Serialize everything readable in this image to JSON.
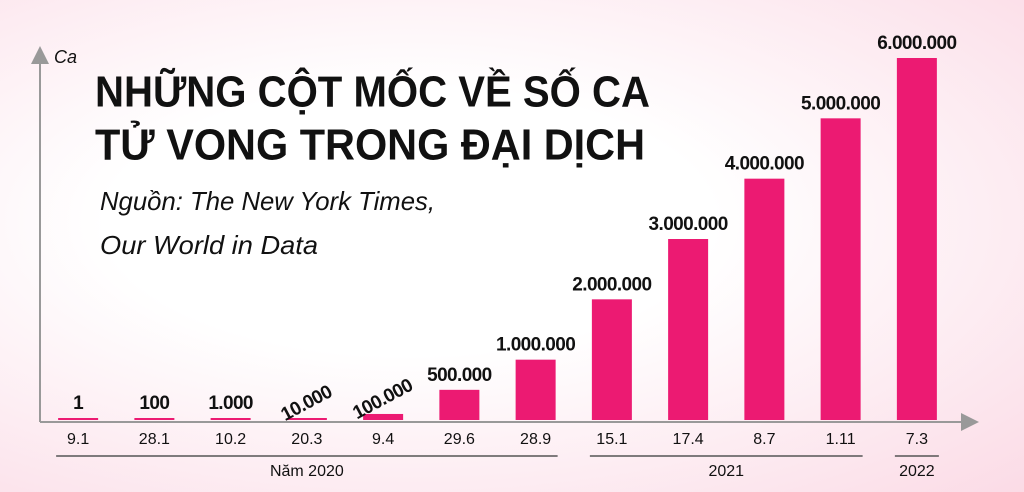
{
  "chart_data": {
    "type": "bar",
    "title": [
      "NHỮNG CỘT MỐC VỀ SỐ CA",
      "TỬ VONG TRONG ĐẠI DỊCH"
    ],
    "subtitle": [
      "Nguồn: The New York Times,",
      "Our World in Data"
    ],
    "y_label": "Ca",
    "categories": [
      "9.1",
      "28.1",
      "10.2",
      "20.3",
      "9.4",
      "29.6",
      "28.9",
      "15.1",
      "17.4",
      "8.7",
      "1.11",
      "7.3"
    ],
    "values": [
      1,
      100,
      1000,
      10000,
      100000,
      500000,
      1000000,
      2000000,
      3000000,
      4000000,
      5000000,
      6000000
    ],
    "value_labels": [
      "1",
      "100",
      "1.000",
      "10.000",
      "100.000",
      "500.000",
      "1.000.000",
      "2.000.000",
      "3.000.000",
      "4.000.000",
      "5.000.000",
      "6.000.000"
    ],
    "year_groups": [
      "Năm 2020",
      "2021",
      "2022"
    ],
    "color": "#ec1a72",
    "ylim": [
      0,
      6000000
    ]
  }
}
